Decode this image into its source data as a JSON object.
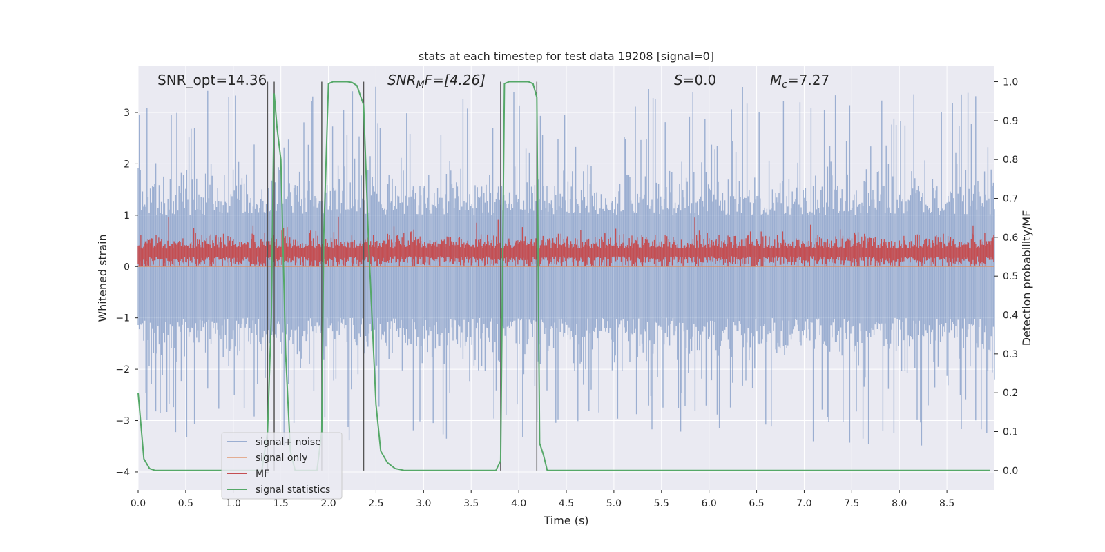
{
  "chart_data": {
    "type": "line",
    "title": "stats at each timestep for test data 19208 [signal=0]",
    "xlabel": "Time (s)",
    "ylabel": "Whitened strain",
    "ylabel_right": "Detection probability/MF",
    "xlim": [
      0.0,
      9.0
    ],
    "ylim": [
      -4.35,
      3.9
    ],
    "ylim_right": [
      -0.05,
      1.04
    ],
    "grid": true,
    "x_ticks": [
      0.0,
      0.5,
      1.0,
      1.5,
      2.0,
      2.5,
      3.0,
      3.5,
      4.0,
      4.5,
      5.0,
      5.5,
      6.0,
      6.5,
      7.0,
      7.5,
      8.0,
      8.5
    ],
    "x_tick_labels": [
      "0.0",
      "0.5",
      "1.0",
      "1.5",
      "2.0",
      "2.5",
      "3.0",
      "3.5",
      "4.0",
      "4.5",
      "5.0",
      "5.5",
      "6.0",
      "6.5",
      "7.0",
      "7.5",
      "8.0",
      "8.5"
    ],
    "y_ticks": [
      -4,
      -3,
      -2,
      -1,
      0,
      1,
      2,
      3
    ],
    "y_tick_labels": [
      "−4",
      "−3",
      "−2",
      "−1",
      "0",
      "1",
      "2",
      "3"
    ],
    "y_ticks_right": [
      0.0,
      0.1,
      0.2,
      0.3,
      0.4,
      0.5,
      0.6,
      0.7,
      0.8,
      0.9,
      1.0
    ],
    "y_tick_labels_right": [
      "0.0",
      "0.1",
      "0.2",
      "0.3",
      "0.4",
      "0.5",
      "0.6",
      "0.7",
      "0.8",
      "0.9",
      "1.0"
    ],
    "annotations": {
      "snr_opt": "SNR_opt=14.36",
      "snr_mf_sym": "SNR",
      "snr_mf_sub": "M",
      "snr_mf_rest": "F=[4.26]",
      "s_sym": "S",
      "s_rest": "=0.0",
      "mc_sym": "M",
      "mc_sub": "c",
      "mc_rest": "=7.27"
    },
    "legend": {
      "placement": "lower-left",
      "entries": [
        {
          "label": "signal+ noise",
          "color": "#4c72b0"
        },
        {
          "label": "signal only",
          "color": "#dd8452"
        },
        {
          "label": "MF",
          "color": "#c44e52"
        },
        {
          "label": "signal statistics",
          "color": "#55a868"
        }
      ]
    },
    "vlines_time": [
      1.36,
      1.43,
      1.93,
      2.37,
      3.81,
      4.19
    ],
    "series": [
      {
        "name": "signal+ noise",
        "color": "#4c72b0",
        "kind": "noise-envelope",
        "upper_typical": 1.8,
        "upper_peak": 3.5,
        "lower_typical": -1.8,
        "lower_peak": -3.5
      },
      {
        "name": "signal only",
        "color": "#dd8452",
        "kind": "flat",
        "value": 0.0
      },
      {
        "name": "MF",
        "color": "#c44e52",
        "kind": "noise-band",
        "base": 0.25,
        "spread": 0.2,
        "peak": 1.0
      },
      {
        "name": "signal statistics",
        "color": "#55a868",
        "axis": "right",
        "x": [
          0.0,
          0.06,
          0.12,
          0.18,
          0.3,
          0.5,
          1.0,
          1.2,
          1.3,
          1.36,
          1.4,
          1.43,
          1.46,
          1.5,
          1.55,
          1.6,
          1.65,
          1.7,
          1.8,
          1.88,
          1.93,
          1.95,
          2.0,
          2.05,
          2.1,
          2.2,
          2.25,
          2.3,
          2.37,
          2.42,
          2.5,
          2.55,
          2.62,
          2.7,
          2.8,
          3.0,
          3.5,
          3.76,
          3.81,
          3.85,
          3.9,
          4.0,
          4.1,
          4.15,
          4.19,
          4.22,
          4.26,
          4.3,
          4.5,
          5.0,
          6.0,
          7.0,
          8.0,
          8.95
        ],
        "values": [
          0.2,
          0.03,
          0.005,
          0.0,
          0.0,
          0.0,
          0.0,
          0.0,
          0.0,
          0.1,
          0.4,
          0.97,
          0.88,
          0.8,
          0.3,
          0.05,
          0.0,
          0.0,
          0.0,
          0.0,
          0.1,
          0.6,
          0.995,
          1.0,
          1.0,
          1.0,
          0.998,
          0.99,
          0.94,
          0.6,
          0.17,
          0.05,
          0.02,
          0.005,
          0.0,
          0.0,
          0.0,
          0.0,
          0.025,
          0.995,
          1.0,
          1.0,
          1.0,
          0.995,
          0.96,
          0.07,
          0.04,
          0.0,
          0.0,
          0.0,
          0.0,
          0.0,
          0.0,
          0.0
        ]
      }
    ]
  }
}
